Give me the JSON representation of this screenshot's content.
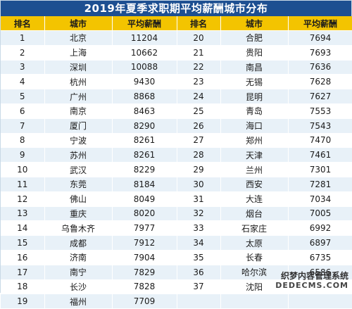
{
  "title": "2019年夏季求职期平均薪酬城市分布",
  "headers": [
    "排名",
    "城市",
    "平均薪酬",
    "排名",
    "城市",
    "平均薪酬"
  ],
  "rows": [
    {
      "r1": "1",
      "c1": "北京",
      "s1": "11204",
      "r2": "20",
      "c2": "合肥",
      "s2": "7694"
    },
    {
      "r1": "2",
      "c1": "上海",
      "s1": "10662",
      "r2": "21",
      "c2": "贵阳",
      "s2": "7693"
    },
    {
      "r1": "3",
      "c1": "深圳",
      "s1": "10088",
      "r2": "22",
      "c2": "南昌",
      "s2": "7636"
    },
    {
      "r1": "4",
      "c1": "杭州",
      "s1": "9430",
      "r2": "23",
      "c2": "无锡",
      "s2": "7628"
    },
    {
      "r1": "5",
      "c1": "广州",
      "s1": "8868",
      "r2": "24",
      "c2": "昆明",
      "s2": "7627"
    },
    {
      "r1": "6",
      "c1": "南京",
      "s1": "8463",
      "r2": "25",
      "c2": "青岛",
      "s2": "7553"
    },
    {
      "r1": "7",
      "c1": "厦门",
      "s1": "8290",
      "r2": "26",
      "c2": "海口",
      "s2": "7543"
    },
    {
      "r1": "8",
      "c1": "宁波",
      "s1": "8261",
      "r2": "27",
      "c2": "郑州",
      "s2": "7470"
    },
    {
      "r1": "9",
      "c1": "苏州",
      "s1": "8261",
      "r2": "28",
      "c2": "天津",
      "s2": "7461"
    },
    {
      "r1": "10",
      "c1": "武汉",
      "s1": "8229",
      "r2": "29",
      "c2": "兰州",
      "s2": "7301"
    },
    {
      "r1": "11",
      "c1": "东莞",
      "s1": "8184",
      "r2": "30",
      "c2": "西安",
      "s2": "7281"
    },
    {
      "r1": "12",
      "c1": "佛山",
      "s1": "8049",
      "r2": "31",
      "c2": "大连",
      "s2": "7034"
    },
    {
      "r1": "13",
      "c1": "重庆",
      "s1": "8020",
      "r2": "32",
      "c2": "烟台",
      "s2": "7005"
    },
    {
      "r1": "14",
      "c1": "乌鲁木齐",
      "s1": "7977",
      "r2": "33",
      "c2": "石家庄",
      "s2": "6992"
    },
    {
      "r1": "15",
      "c1": "成都",
      "s1": "7912",
      "r2": "34",
      "c2": "太原",
      "s2": "6897"
    },
    {
      "r1": "16",
      "c1": "济南",
      "s1": "7904",
      "r2": "35",
      "c2": "长春",
      "s2": "6735"
    },
    {
      "r1": "17",
      "c1": "南宁",
      "s1": "7829",
      "r2": "36",
      "c2": "哈尔滨",
      "s2": "6586"
    },
    {
      "r1": "18",
      "c1": "长沙",
      "s1": "7828",
      "r2": "37",
      "c2": "沈阳",
      "s2": ""
    },
    {
      "r1": "19",
      "c1": "福州",
      "s1": "7709",
      "r2": "",
      "c2": "",
      "s2": ""
    }
  ],
  "watermark": {
    "line1": "织梦内容管理系统",
    "line2": "DEDECMS.COM"
  },
  "colors": {
    "title_bg": "#1d4f91",
    "header_bg": "#f3c400",
    "stripe": "#e8f1f8"
  }
}
